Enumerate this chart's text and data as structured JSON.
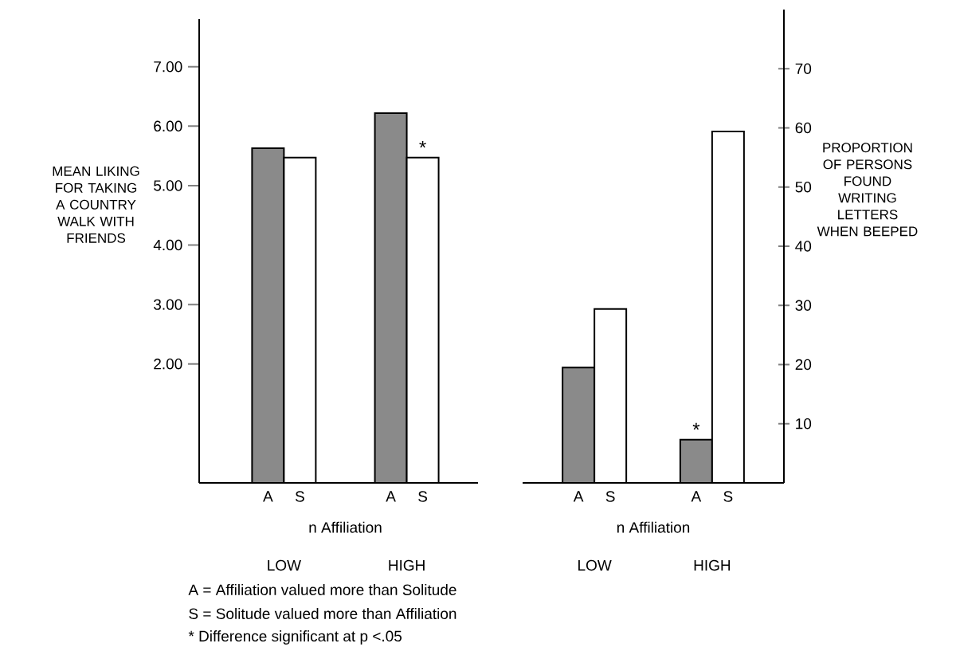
{
  "chart_data": [
    {
      "type": "bar",
      "ylabel": "MEAN LIKING FOR TAKING A COUNTRY WALK WITH FRIENDS",
      "xlabel": "n Affiliation",
      "categories": [
        "LOW",
        "HIGH"
      ],
      "series": [
        {
          "name": "A",
          "color": "#8a8a8a",
          "values": [
            5.63,
            6.22
          ]
        },
        {
          "name": "S",
          "color": "#ffffff",
          "values": [
            5.47,
            5.47
          ]
        }
      ],
      "ylim": [
        0,
        7.8
      ],
      "yticks": [
        {
          "value": 2,
          "label": "2.00"
        },
        {
          "value": 3,
          "label": "3.00"
        },
        {
          "value": 4,
          "label": "4.00"
        },
        {
          "value": 5,
          "label": "5.00"
        },
        {
          "value": 6,
          "label": "6.00"
        },
        {
          "value": 7,
          "label": "7.00"
        }
      ],
      "annotations": [
        {
          "text": "*",
          "x": "HIGH",
          "y": 5.47
        },
        "A = Affiliation valued more than Solitude",
        "S = Solitude valued more than Affiliation",
        "* Difference significant at p <.05"
      ]
    },
    {
      "type": "bar",
      "ylabel": "PROPORTION OF PERSONS FOUND WRITING LETTERS WHEN BEEPED",
      "xlabel": "n Affiliation",
      "categories": [
        "LOW",
        "HIGH"
      ],
      "series": [
        {
          "name": "A",
          "color": "#8a8a8a",
          "values": [
            19.5,
            7.3
          ]
        },
        {
          "name": "S",
          "color": "#ffffff",
          "values": [
            29.4,
            59.4
          ]
        }
      ],
      "ylim": [
        0,
        80
      ],
      "yticks": [
        10,
        20,
        30,
        40,
        50,
        60,
        70
      ],
      "annotations": [
        {
          "text": "*",
          "x": "HIGH",
          "y": 7.3
        }
      ]
    }
  ]
}
